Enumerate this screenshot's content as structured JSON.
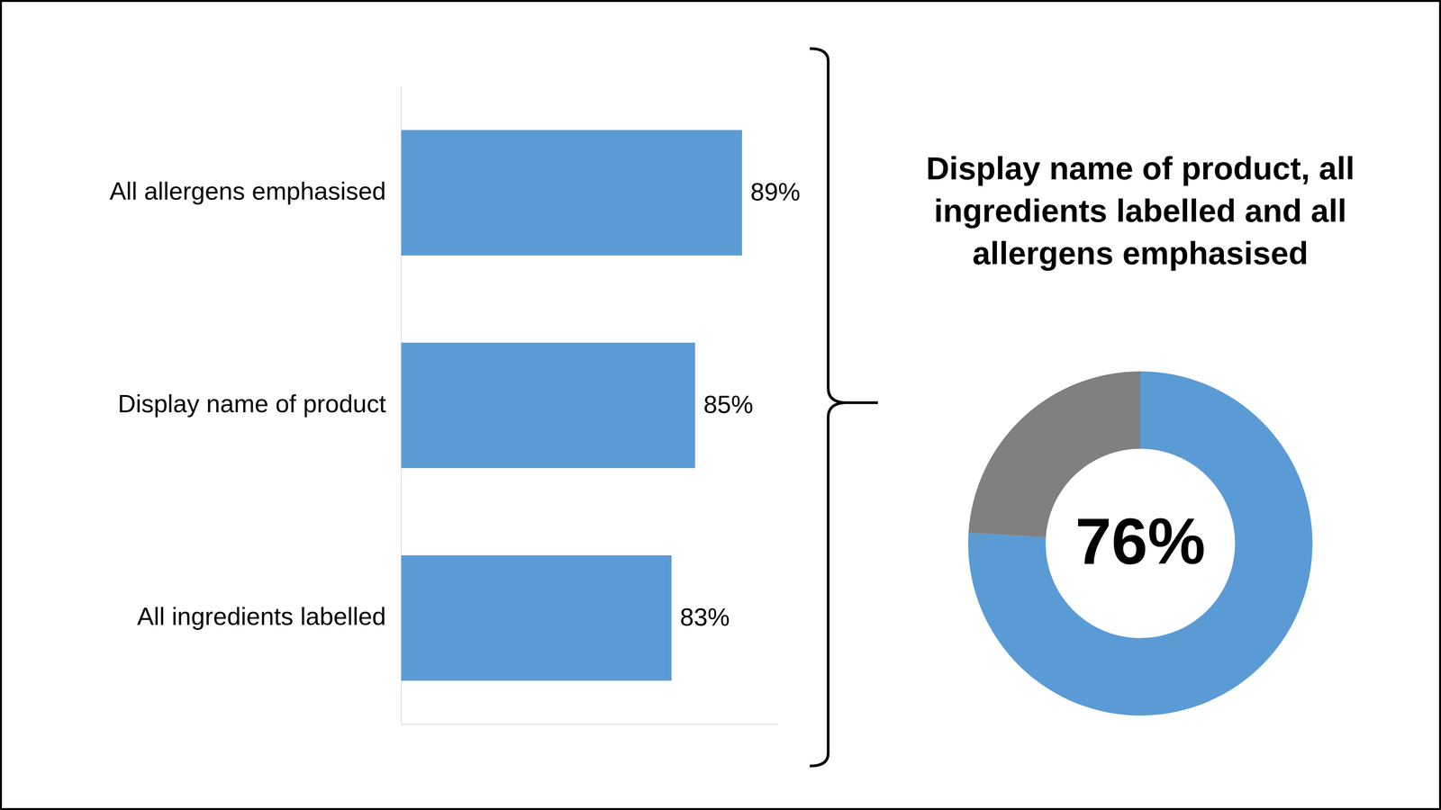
{
  "chart_data": [
    {
      "type": "bar",
      "orientation": "horizontal",
      "categories": [
        "All allergens emphasised",
        "Display name of product",
        "All ingredients labelled"
      ],
      "values": [
        89,
        85,
        83
      ],
      "value_labels": [
        "89%",
        "85%",
        "83%"
      ],
      "data_labels": true,
      "color": "#5b9bd5",
      "xlim": [
        60,
        92
      ],
      "tick_labels": "y",
      "grid": false
    },
    {
      "type": "doughnut",
      "title": "Display name of product, all ingredients labelled and all allergens emphasised",
      "values": [
        76,
        24
      ],
      "colors": [
        "#5b9bd5",
        "#808080"
      ],
      "center_label": "76%"
    }
  ]
}
